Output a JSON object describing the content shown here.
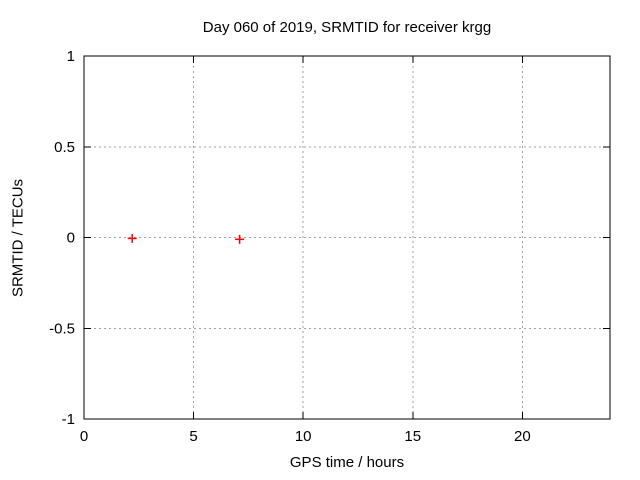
{
  "chart_data": {
    "type": "scatter",
    "title": "Day 060 of 2019, SRMTID for receiver krgg",
    "xlabel": "GPS time / hours",
    "ylabel": "SRMTID / TECUs",
    "xlim": [
      0,
      24
    ],
    "ylim": [
      -1,
      1
    ],
    "xticks": [
      0,
      5,
      10,
      15,
      20
    ],
    "yticks": [
      -1,
      -0.5,
      0,
      0.5,
      1
    ],
    "grid": true,
    "legend": "none",
    "series": [
      {
        "name": "SRMTID",
        "marker": "plus",
        "color": "#ff0000",
        "points": [
          [
            2.2,
            -0.005
          ],
          [
            7.1,
            -0.01
          ]
        ]
      }
    ],
    "colors": {
      "background": "#ffffff",
      "axis": "#000000",
      "grid": "#a0a0a0",
      "text": "#000000",
      "marker": "#ff0000"
    }
  }
}
